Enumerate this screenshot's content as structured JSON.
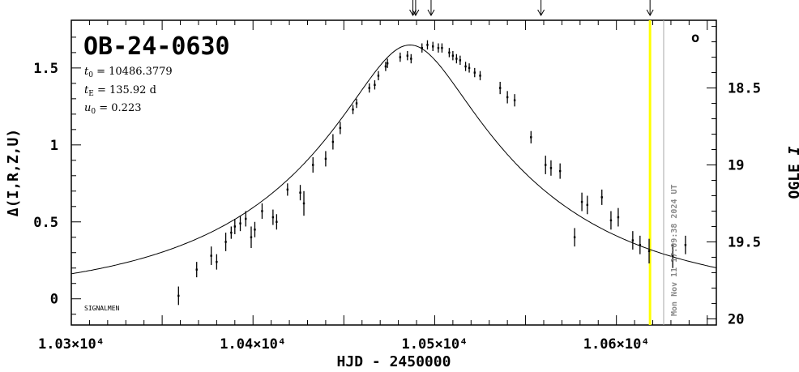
{
  "chart_data": {
    "type": "scatter",
    "title": "OB-24-0630",
    "params": {
      "t0_label": "t",
      "t0_sub": "0",
      "t0_value": " = 10486.3779",
      "tE_label": "t",
      "tE_sub": "E",
      "tE_value": " = 135.92 d",
      "u0_label": "u",
      "u0_sub": "0",
      "u0_value": " = 0.223"
    },
    "xlabel": "HJD - 2450000",
    "ylabel_left": "Δ(I,R,Z,U)",
    "ylabel_right_text": "OGLE ",
    "ylabel_right_italic": "I",
    "xlim": [
      10300,
      10655
    ],
    "ylim_left": [
      -0.17,
      1.81
    ],
    "ylim_right": [
      20.04,
      18.06
    ],
    "x_ticks": [
      {
        "value": 10300,
        "label": "1.03×10⁴"
      },
      {
        "value": 10400,
        "label": "1.04×10⁴"
      },
      {
        "value": 10500,
        "label": "1.05×10⁴"
      },
      {
        "value": 10600,
        "label": "1.06×10⁴"
      }
    ],
    "y_ticks_left": [
      {
        "value": 0,
        "label": "0"
      },
      {
        "value": 0.5,
        "label": "0.5"
      },
      {
        "value": 1,
        "label": "1"
      },
      {
        "value": 1.5,
        "label": "1.5"
      }
    ],
    "y_ticks_right": [
      {
        "value": 18.5,
        "label": "18.5"
      },
      {
        "value": 19,
        "label": "19"
      },
      {
        "value": 19.5,
        "label": "19.5"
      },
      {
        "value": 20,
        "label": "20"
      }
    ],
    "model": {
      "t0": 10486.3779,
      "tE": 135.92,
      "u0": 0.223,
      "baseline": 20.0
    },
    "points": [
      [
        10359,
        0.02,
        0.06
      ],
      [
        10369,
        0.19,
        0.05
      ],
      [
        10377,
        0.28,
        0.06
      ],
      [
        10380,
        0.24,
        0.05
      ],
      [
        10385,
        0.37,
        0.06
      ],
      [
        10388,
        0.43,
        0.04
      ],
      [
        10390,
        0.47,
        0.05
      ],
      [
        10393,
        0.49,
        0.05
      ],
      [
        10396,
        0.52,
        0.05
      ],
      [
        10399,
        0.4,
        0.07
      ],
      [
        10401,
        0.45,
        0.05
      ],
      [
        10405,
        0.57,
        0.05
      ],
      [
        10411,
        0.53,
        0.05
      ],
      [
        10413,
        0.5,
        0.05
      ],
      [
        10419,
        0.71,
        0.04
      ],
      [
        10426,
        0.69,
        0.05
      ],
      [
        10428,
        0.62,
        0.08
      ],
      [
        10433,
        0.87,
        0.05
      ],
      [
        10440,
        0.91,
        0.05
      ],
      [
        10444,
        1.02,
        0.05
      ],
      [
        10448,
        1.11,
        0.04
      ],
      [
        10455,
        1.23,
        0.03
      ],
      [
        10457,
        1.27,
        0.03
      ],
      [
        10464,
        1.37,
        0.03
      ],
      [
        10467,
        1.39,
        0.03
      ],
      [
        10469,
        1.45,
        0.03
      ],
      [
        10473,
        1.51,
        0.03
      ],
      [
        10474,
        1.53,
        0.03
      ],
      [
        10481,
        1.57,
        0.03
      ],
      [
        10485,
        1.58,
        0.03
      ],
      [
        10487,
        1.56,
        0.03
      ],
      [
        10493,
        1.63,
        0.03
      ],
      [
        10496,
        1.65,
        0.03
      ],
      [
        10499,
        1.64,
        0.03
      ],
      [
        10502,
        1.63,
        0.03
      ],
      [
        10504,
        1.63,
        0.03
      ],
      [
        10508,
        1.6,
        0.03
      ],
      [
        10510,
        1.58,
        0.03
      ],
      [
        10512,
        1.56,
        0.03
      ],
      [
        10514,
        1.55,
        0.03
      ],
      [
        10517,
        1.51,
        0.03
      ],
      [
        10519,
        1.5,
        0.03
      ],
      [
        10522,
        1.47,
        0.03
      ],
      [
        10525,
        1.45,
        0.03
      ],
      [
        10536,
        1.37,
        0.04
      ],
      [
        10540,
        1.31,
        0.04
      ],
      [
        10544,
        1.29,
        0.04
      ],
      [
        10553,
        1.05,
        0.04
      ],
      [
        10561,
        0.87,
        0.06
      ],
      [
        10564,
        0.85,
        0.05
      ],
      [
        10569,
        0.83,
        0.05
      ],
      [
        10577,
        0.4,
        0.06
      ],
      [
        10581,
        0.63,
        0.06
      ],
      [
        10584,
        0.61,
        0.06
      ],
      [
        10592,
        0.66,
        0.05
      ],
      [
        10597,
        0.51,
        0.06
      ],
      [
        10601,
        0.53,
        0.06
      ],
      [
        10609,
        0.38,
        0.06
      ],
      [
        10613,
        0.35,
        0.06
      ],
      [
        10618,
        0.31,
        0.08
      ],
      [
        10631,
        0.28,
        0.08
      ],
      [
        10638,
        0.35,
        0.06
      ]
    ],
    "arrows_x": [
      10488.0,
      10489.5,
      10498.0,
      10558.5,
      10618.5
    ],
    "current_time_x": 10618.5,
    "timestamp_line_x": 10626.0,
    "timestamp": "Mon Nov 11 17:09:38 2024 UT",
    "signalmen_label": "SIGNALMEN",
    "corner_symbol": "o",
    "colors": {
      "current_time": "#ffff00",
      "timestamp_line": "#aaaaaa",
      "timestamp_text": "#888888"
    }
  }
}
